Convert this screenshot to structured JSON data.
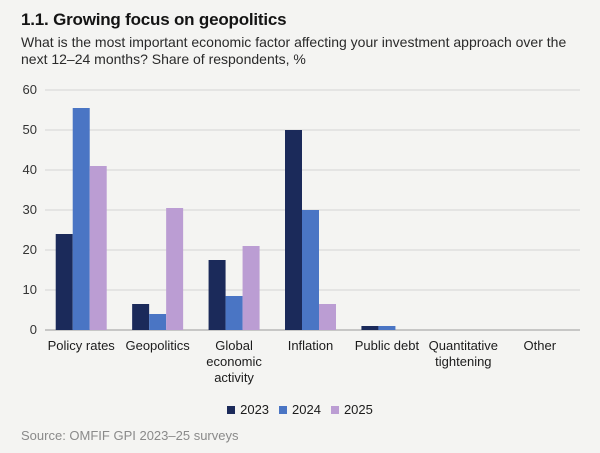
{
  "title": "1.1. Growing focus on geopolitics",
  "subtitle": "What is the most important economic factor affecting your investment approach over the next 12–24 months? Share of respondents, %",
  "source": "Source: OMFIF GPI 2023–25 surveys",
  "colors": {
    "2023": "#1b2a5a",
    "2024": "#4a75c4",
    "2025": "#bb9dd3",
    "grid": "#d4d4d4"
  },
  "chart_data": {
    "type": "bar",
    "categories": [
      [
        "Policy rates"
      ],
      [
        "Geopolitics"
      ],
      [
        "Global",
        "economic",
        "activity"
      ],
      [
        "Inflation"
      ],
      [
        "Public debt"
      ],
      [
        "Quantitative",
        "tightening"
      ],
      [
        "Other"
      ]
    ],
    "series": [
      {
        "name": "2023",
        "values": [
          24,
          6.5,
          17.5,
          50,
          1,
          0,
          0
        ]
      },
      {
        "name": "2024",
        "values": [
          55.5,
          4,
          8.5,
          30,
          1,
          0,
          0
        ]
      },
      {
        "name": "2025",
        "values": [
          41,
          30.5,
          21,
          6.5,
          0,
          0,
          0
        ]
      }
    ],
    "ylim": [
      0,
      60
    ],
    "yticks": [
      0,
      10,
      20,
      30,
      40,
      50,
      60
    ],
    "grid": true,
    "legend_position": "bottom-center"
  }
}
